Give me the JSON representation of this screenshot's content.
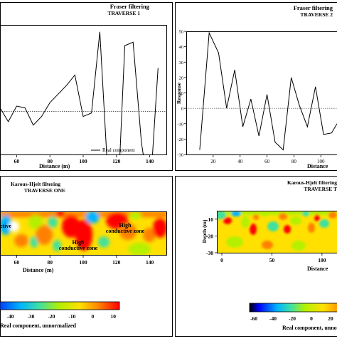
{
  "chart_data": [
    {
      "type": "line",
      "panel": "top-left",
      "title": "Fraser filtering",
      "subtitle": "TRAVERSE 1",
      "xlabel": "Distance (m)",
      "ylabel": "",
      "xticks": [
        "60",
        "80",
        "100",
        "120",
        "140"
      ],
      "xlim": [
        50,
        150
      ],
      "ylim": [
        -25,
        50
      ],
      "baseline": 0,
      "grid": false,
      "legend": "bottom-right",
      "series": [
        {
          "name": "Real component",
          "x": [
            50,
            55,
            60,
            65,
            70,
            75,
            80,
            85,
            90,
            95,
            100,
            105,
            110,
            115,
            120,
            125,
            130,
            135,
            140,
            145
          ],
          "y": [
            2,
            -6,
            3,
            2,
            -8,
            -3,
            5,
            10,
            15,
            21,
            -3,
            -1,
            46,
            -40,
            -70,
            38,
            40,
            -18,
            -50,
            25
          ]
        }
      ]
    },
    {
      "type": "line",
      "panel": "top-right",
      "title": "Fraser filtering",
      "subtitle": "TRAVERSE 2",
      "xlabel": "Distance",
      "ylabel": "Response",
      "yticks": [
        "50",
        "40",
        "30",
        "20",
        "10",
        "0",
        "-10",
        "-20",
        "-30"
      ],
      "xticks": [
        "20",
        "40",
        "60",
        "80",
        "100"
      ],
      "xlim": [
        0,
        112
      ],
      "ylim": [
        -30,
        50
      ],
      "baseline": 0,
      "grid": false,
      "series": [
        {
          "name": "",
          "x": [
            10,
            17,
            24,
            30,
            36,
            42,
            48,
            54,
            60,
            66,
            72,
            78,
            84,
            90,
            96,
            102,
            108,
            112
          ],
          "y": [
            -27,
            49,
            36,
            0,
            25,
            -12,
            6,
            -18,
            9,
            -22,
            -27,
            20,
            2,
            -12,
            14,
            -17,
            -16,
            -10
          ]
        }
      ]
    },
    {
      "type": "heatmap",
      "panel": "bottom-left",
      "title": "Karous-Hjelt filtering",
      "subtitle": "TRAVERSE ONE",
      "xlabel": "Distance (m)",
      "xticks": [
        "60",
        "80",
        "100",
        "120",
        "140"
      ],
      "annotations": [
        "High conductive zone",
        "High conductive zone",
        "ctive"
      ],
      "colorbar": {
        "label": "Real component, unnormalized",
        "ticks": [
          "-40",
          "-30",
          "-20",
          "-10",
          "0",
          "10"
        ],
        "colors": [
          "#0040ff",
          "#00b4ff",
          "#40e0a0",
          "#b4f000",
          "#ffe000",
          "#ff8000",
          "#ff0000"
        ]
      }
    },
    {
      "type": "heatmap",
      "panel": "bottom-right",
      "title": "Karous-Hjelt filtering",
      "subtitle": "TRAVERSE T",
      "xlabel": "Distance",
      "ylabel": "Depth (m)",
      "yticks": [
        "-10",
        "-20",
        "-30"
      ],
      "xticks": [
        "0",
        "50",
        "100"
      ],
      "colorbar": {
        "label": "Real component, unnormalized",
        "ticks": [
          "-60",
          "-40",
          "-20",
          "0",
          "20"
        ],
        "colors": [
          "#000000",
          "#0000ff",
          "#00b4ff",
          "#40e0a0",
          "#b4f000",
          "#ffe000",
          "#ff8000"
        ]
      }
    }
  ]
}
